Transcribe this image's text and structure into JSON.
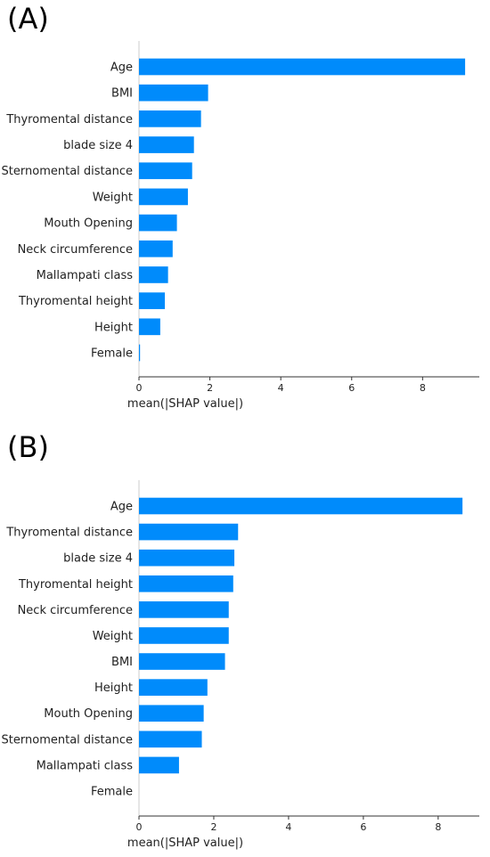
{
  "chart_data": [
    {
      "type": "bar",
      "panel_label": "(A)",
      "orientation": "horizontal",
      "categories": [
        "Age",
        "BMI",
        "Thyromental distance",
        "blade size 4",
        "Sternomental distance",
        "Weight",
        "Mouth Opening",
        "Neck circumference",
        "Mallampati class",
        "Thyromental height",
        "Height",
        "Female"
      ],
      "values": [
        9.2,
        1.95,
        1.75,
        1.55,
        1.5,
        1.38,
        1.07,
        0.95,
        0.82,
        0.73,
        0.6,
        0.03
      ],
      "xlabel": "mean(|SHAP value|)",
      "ylabel": "",
      "xlim": [
        0,
        9.6
      ],
      "xticks": [
        "0",
        "2",
        "4",
        "6",
        "8"
      ],
      "bar_color": "#008bfb"
    },
    {
      "type": "bar",
      "panel_label": "(B)",
      "orientation": "horizontal",
      "categories": [
        "Age",
        "Thyromental distance",
        "blade size 4",
        "Thyromental height",
        "Neck circumference",
        "Weight",
        "BMI",
        "Height",
        "Mouth Opening",
        "Sternomental distance",
        "Mallampati class",
        "Female"
      ],
      "values": [
        8.65,
        2.65,
        2.55,
        2.52,
        2.4,
        2.4,
        2.3,
        1.83,
        1.73,
        1.68,
        1.07,
        0.0
      ],
      "xlabel": "mean(|SHAP value|)",
      "ylabel": "",
      "xlim": [
        0,
        9.1
      ],
      "xticks": [
        "0",
        "2",
        "4",
        "6",
        "8"
      ],
      "bar_color": "#008bfb"
    }
  ]
}
